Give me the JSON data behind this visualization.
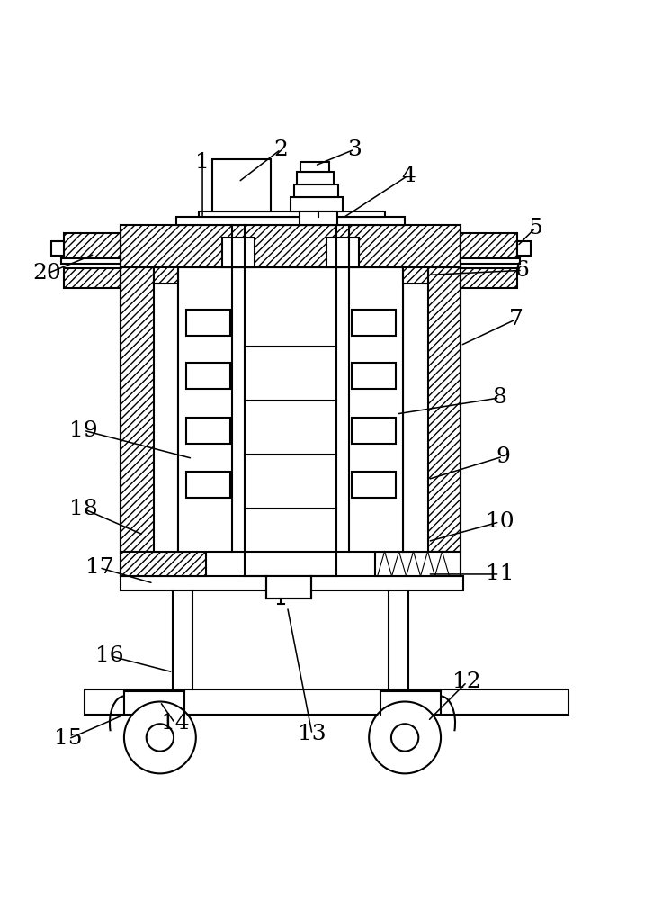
{
  "bg_color": "#ffffff",
  "line_color": "#000000",
  "label_color": "#000000",
  "label_fontsize": 18,
  "lw": 1.5
}
